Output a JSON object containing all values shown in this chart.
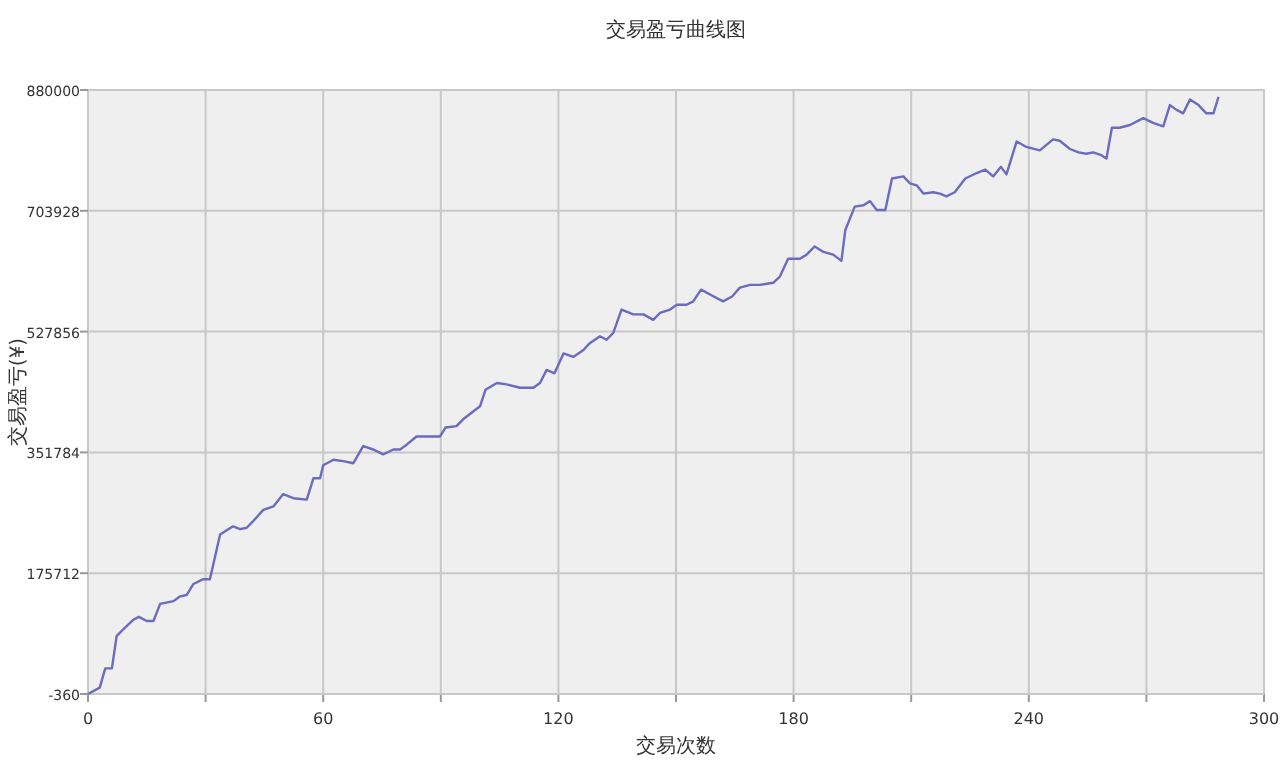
{
  "chart_data": {
    "type": "line",
    "title": "交易盈亏曲线图",
    "xlabel": "交易次数",
    "ylabel": "交易盈亏(¥)",
    "xlim": [
      0,
      300
    ],
    "xticks": [
      0,
      {
        "value": 30,
        "label": null
      },
      60,
      {
        "value": 90,
        "label": null
      },
      120,
      {
        "value": 150,
        "label": null
      },
      180,
      {
        "value": 210,
        "label": null
      },
      240,
      {
        "value": 270,
        "label": null
      },
      300
    ],
    "ylim": [
      -360,
      880000
    ],
    "yticks": [
      -360,
      175712,
      351784,
      527856,
      703928,
      880000
    ],
    "grid": true,
    "marker": "none",
    "line_style": "solid",
    "series": [
      {
        "color": "#6b6bbf",
        "x": [
          0,
          3,
          4.4,
          6.1,
          7.3,
          9,
          11.6,
          13,
          15,
          16.7,
          18.4,
          21.8,
          23.5,
          25.2,
          26.9,
          29.4,
          31.1,
          33.7,
          37,
          38.8,
          40.5,
          42.2,
          44.7,
          47.3,
          49.8,
          52.4,
          55.8,
          57.5,
          59.2,
          60,
          62.6,
          65.1,
          67.7,
          70.2,
          72.8,
          75.3,
          77.9,
          79.6,
          81.3,
          83.8,
          86.4,
          89.8,
          91.2,
          94,
          95.7,
          100,
          101.4,
          104.3,
          106.8,
          110.2,
          113.6,
          115.3,
          117,
          119,
          121.3,
          123.8,
          126.4,
          128,
          130.6,
          132.3,
          134,
          136.1,
          139.1,
          141.7,
          144.2,
          145.9,
          148.5,
          150.2,
          152.7,
          154.4,
          156.4,
          158.7,
          162,
          164.3,
          166.3,
          168.9,
          171.4,
          174.8,
          176.5,
          178.6,
          181.6,
          183.3,
          185.4,
          187.6,
          190.1,
          192.2,
          193.2,
          195.6,
          197.8,
          199.5,
          201.2,
          203.4,
          205.1,
          208,
          209.7,
          211.4,
          213.1,
          215.6,
          217.3,
          219,
          221.1,
          223.8,
          226.7,
          228.9,
          230.9,
          232.9,
          234.3,
          236.9,
          239.4,
          242.8,
          246.2,
          247.9,
          250.5,
          252.7,
          254.7,
          256.4,
          258.5,
          259.8,
          261.2,
          263.2,
          265.8,
          269.2,
          271.7,
          274.3,
          276,
          277.7,
          279.4,
          281.1,
          283.3,
          285.3,
          287.1,
          288.4
        ],
        "values": [
          -360,
          9000,
          37000,
          37000,
          84000,
          94000,
          108000,
          112000,
          106000,
          106000,
          131000,
          135000,
          142000,
          144000,
          160000,
          167000,
          167000,
          232000,
          244000,
          240000,
          242000,
          252000,
          268000,
          273000,
          291000,
          285000,
          283000,
          314000,
          314000,
          333000,
          341000,
          339000,
          336000,
          361000,
          356000,
          349000,
          356000,
          356000,
          363000,
          375000,
          375000,
          375000,
          388000,
          390000,
          400000,
          419000,
          443000,
          453000,
          451000,
          446000,
          446000,
          453000,
          472000,
          467000,
          496000,
          491000,
          501000,
          511000,
          521000,
          516000,
          526000,
          560000,
          553000,
          553000,
          545000,
          555000,
          560000,
          567000,
          567000,
          572000,
          589000,
          582000,
          572000,
          579000,
          592000,
          596000,
          596000,
          599000,
          608000,
          634000,
          634000,
          640000,
          652000,
          644000,
          640000,
          631000,
          676000,
          710000,
          712000,
          718000,
          705000,
          705000,
          751000,
          754000,
          744000,
          741000,
          729000,
          731000,
          729000,
          725000,
          731000,
          751000,
          759000,
          764000,
          754000,
          768000,
          757000,
          805000,
          797000,
          792000,
          808000,
          806000,
          794000,
          789000,
          787000,
          789000,
          785000,
          780000,
          825000,
          825000,
          829000,
          839000,
          832000,
          827000,
          858000,
          851000,
          846000,
          866000,
          858000,
          846000,
          846000,
          870000
        ]
      }
    ]
  }
}
